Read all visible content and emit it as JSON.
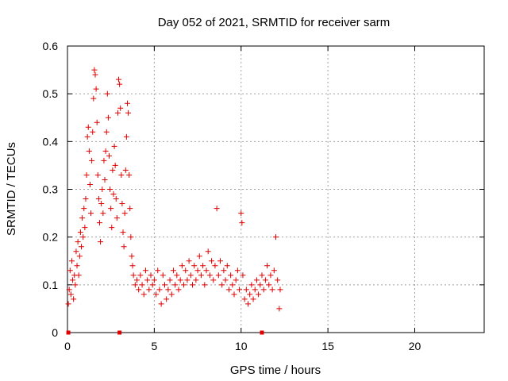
{
  "chart_data": {
    "type": "scatter",
    "title": "Day 052 of 2021, SRMTID for receiver sarm",
    "xlabel": "GPS time / hours",
    "ylabel": "SRMTID / TECUs",
    "xlim": [
      0,
      24
    ],
    "ylim": [
      0,
      0.6
    ],
    "xticks": [
      0,
      5,
      10,
      15,
      20
    ],
    "yticks": [
      0,
      0.1,
      0.2,
      0.3,
      0.4,
      0.5,
      0.6
    ],
    "xtick_labels": [
      "0",
      "5",
      "10",
      "15",
      "20"
    ],
    "ytick_labels": [
      "0",
      "0.1",
      "0.2",
      "0.3",
      "0.4",
      "0.5",
      "0.6"
    ],
    "grid": true,
    "marker": "+",
    "color": "#e00000",
    "gap_markers_x": [
      0.05,
      3.0,
      11.2
    ],
    "series": [
      {
        "points": [
          [
            0.05,
            0.06
          ],
          [
            0.1,
            0.09
          ],
          [
            0.15,
            0.13
          ],
          [
            0.2,
            0.08
          ],
          [
            0.25,
            0.15
          ],
          [
            0.3,
            0.11
          ],
          [
            0.35,
            0.07
          ],
          [
            0.4,
            0.12
          ],
          [
            0.45,
            0.1
          ],
          [
            0.5,
            0.17
          ],
          [
            0.55,
            0.14
          ],
          [
            0.6,
            0.19
          ],
          [
            0.65,
            0.12
          ],
          [
            0.7,
            0.16
          ],
          [
            0.75,
            0.21
          ],
          [
            0.8,
            0.18
          ],
          [
            0.85,
            0.24
          ],
          [
            0.9,
            0.2
          ],
          [
            0.95,
            0.26
          ],
          [
            1.0,
            0.22
          ],
          [
            1.05,
            0.28
          ],
          [
            1.1,
            0.33
          ],
          [
            1.15,
            0.41
          ],
          [
            1.2,
            0.43
          ],
          [
            1.25,
            0.38
          ],
          [
            1.3,
            0.31
          ],
          [
            1.35,
            0.25
          ],
          [
            1.4,
            0.36
          ],
          [
            1.45,
            0.42
          ],
          [
            1.5,
            0.49
          ],
          [
            1.55,
            0.55
          ],
          [
            1.6,
            0.54
          ],
          [
            1.65,
            0.51
          ],
          [
            1.7,
            0.44
          ],
          [
            1.75,
            0.33
          ],
          [
            1.8,
            0.28
          ],
          [
            1.85,
            0.23
          ],
          [
            1.9,
            0.19
          ],
          [
            1.95,
            0.27
          ],
          [
            2.0,
            0.3
          ],
          [
            2.05,
            0.25
          ],
          [
            2.1,
            0.36
          ],
          [
            2.15,
            0.32
          ],
          [
            2.2,
            0.38
          ],
          [
            2.25,
            0.42
          ],
          [
            2.3,
            0.5
          ],
          [
            2.35,
            0.45
          ],
          [
            2.4,
            0.37
          ],
          [
            2.45,
            0.3
          ],
          [
            2.5,
            0.26
          ],
          [
            2.55,
            0.22
          ],
          [
            2.6,
            0.34
          ],
          [
            2.65,
            0.29
          ],
          [
            2.7,
            0.39
          ],
          [
            2.75,
            0.35
          ],
          [
            2.8,
            0.28
          ],
          [
            2.85,
            0.24
          ],
          [
            2.9,
            0.46
          ],
          [
            2.95,
            0.53
          ],
          [
            3.0,
            0.52
          ],
          [
            3.05,
            0.47
          ],
          [
            3.1,
            0.33
          ],
          [
            3.15,
            0.27
          ],
          [
            3.2,
            0.21
          ],
          [
            3.25,
            0.18
          ],
          [
            3.3,
            0.25
          ],
          [
            3.35,
            0.34
          ],
          [
            3.4,
            0.41
          ],
          [
            3.45,
            0.48
          ],
          [
            3.5,
            0.46
          ],
          [
            3.55,
            0.33
          ],
          [
            3.6,
            0.26
          ],
          [
            3.65,
            0.2
          ],
          [
            3.7,
            0.16
          ],
          [
            3.75,
            0.14
          ],
          [
            3.8,
            0.12
          ],
          [
            3.9,
            0.1
          ],
          [
            4.0,
            0.11
          ],
          [
            4.1,
            0.09
          ],
          [
            4.2,
            0.12
          ],
          [
            4.3,
            0.1
          ],
          [
            4.4,
            0.08
          ],
          [
            4.5,
            0.13
          ],
          [
            4.6,
            0.11
          ],
          [
            4.7,
            0.09
          ],
          [
            4.8,
            0.12
          ],
          [
            4.9,
            0.1
          ],
          [
            5.0,
            0.11
          ],
          [
            5.1,
            0.08
          ],
          [
            5.2,
            0.13
          ],
          [
            5.3,
            0.09
          ],
          [
            5.4,
            0.06
          ],
          [
            5.5,
            0.12
          ],
          [
            5.6,
            0.1
          ],
          [
            5.7,
            0.07
          ],
          [
            5.8,
            0.09
          ],
          [
            5.9,
            0.11
          ],
          [
            6.0,
            0.08
          ],
          [
            6.1,
            0.13
          ],
          [
            6.2,
            0.1
          ],
          [
            6.3,
            0.12
          ],
          [
            6.4,
            0.09
          ],
          [
            6.5,
            0.11
          ],
          [
            6.6,
            0.14
          ],
          [
            6.7,
            0.1
          ],
          [
            6.8,
            0.13
          ],
          [
            6.9,
            0.11
          ],
          [
            7.0,
            0.15
          ],
          [
            7.1,
            0.12
          ],
          [
            7.2,
            0.1
          ],
          [
            7.3,
            0.14
          ],
          [
            7.4,
            0.11
          ],
          [
            7.5,
            0.13
          ],
          [
            7.6,
            0.16
          ],
          [
            7.7,
            0.12
          ],
          [
            7.8,
            0.14
          ],
          [
            7.9,
            0.1
          ],
          [
            8.0,
            0.13
          ],
          [
            8.1,
            0.17
          ],
          [
            8.2,
            0.12
          ],
          [
            8.3,
            0.15
          ],
          [
            8.4,
            0.11
          ],
          [
            8.5,
            0.14
          ],
          [
            8.6,
            0.26
          ],
          [
            8.7,
            0.12
          ],
          [
            8.8,
            0.15
          ],
          [
            8.9,
            0.1
          ],
          [
            9.0,
            0.13
          ],
          [
            9.1,
            0.11
          ],
          [
            9.2,
            0.14
          ],
          [
            9.3,
            0.09
          ],
          [
            9.4,
            0.12
          ],
          [
            9.5,
            0.1
          ],
          [
            9.6,
            0.08
          ],
          [
            9.7,
            0.11
          ],
          [
            9.8,
            0.13
          ],
          [
            9.9,
            0.09
          ],
          [
            10.0,
            0.25
          ],
          [
            10.05,
            0.23
          ],
          [
            10.1,
            0.12
          ],
          [
            10.2,
            0.07
          ],
          [
            10.3,
            0.09
          ],
          [
            10.4,
            0.06
          ],
          [
            10.5,
            0.08
          ],
          [
            10.6,
            0.1
          ],
          [
            10.7,
            0.07
          ],
          [
            10.8,
            0.09
          ],
          [
            10.9,
            0.11
          ],
          [
            11.0,
            0.08
          ],
          [
            11.1,
            0.1
          ],
          [
            11.2,
            0.12
          ],
          [
            11.3,
            0.09
          ],
          [
            11.4,
            0.11
          ],
          [
            11.5,
            0.14
          ],
          [
            11.6,
            0.1
          ],
          [
            11.7,
            0.12
          ],
          [
            11.8,
            0.09
          ],
          [
            11.9,
            0.13
          ],
          [
            12.0,
            0.2
          ],
          [
            12.1,
            0.11
          ],
          [
            12.2,
            0.05
          ],
          [
            12.25,
            0.09
          ]
        ]
      }
    ]
  }
}
